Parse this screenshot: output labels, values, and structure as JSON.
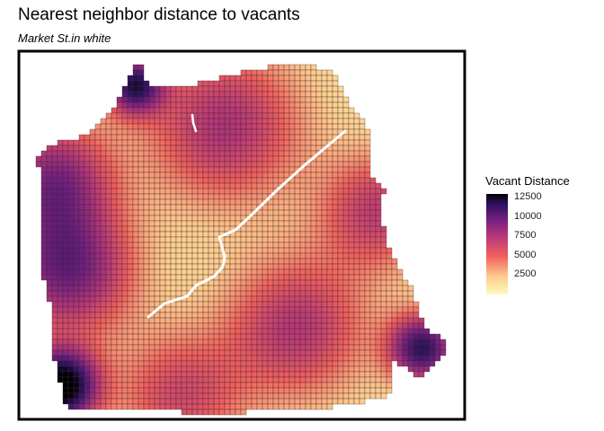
{
  "title": "Nearest neighbor distance to vacants",
  "subtitle": "Market St.in white",
  "chart_data": {
    "type": "heatmap",
    "title": "Nearest neighbor distance to vacants",
    "subtitle": "Market St.in white",
    "fill_variable": "Vacant Distance",
    "fill_range": [
      0,
      13000
    ],
    "palette": "magma (reversed): light yellow = short distance, black = long distance",
    "colors": [
      "#fcfdbf",
      "#feca8d",
      "#f1605d",
      "#b73779",
      "#721f81",
      "#2c115f",
      "#000004"
    ],
    "gridline_color": "#3a2a2a",
    "highlight_line": {
      "label": "Market St.",
      "color": "#ffffff"
    },
    "frame": "black border",
    "legend": {
      "title": "Vacant Distance",
      "ticks": [
        12500,
        10000,
        7500,
        5000,
        2500
      ],
      "tick_labels": [
        "12500",
        "10000",
        "7500",
        "5000",
        "2500"
      ],
      "placement": "right"
    }
  }
}
